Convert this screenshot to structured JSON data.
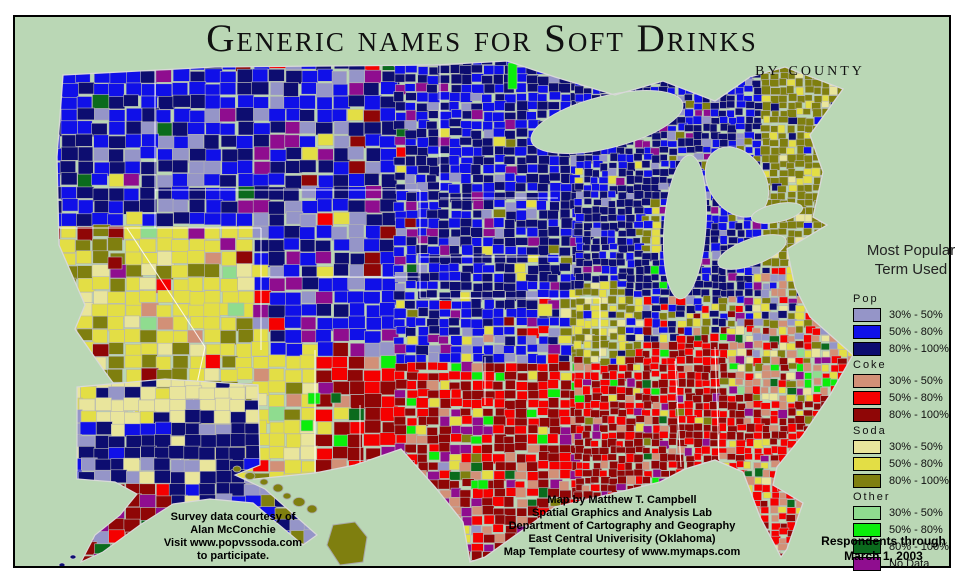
{
  "title": {
    "main": "Generic names for Soft Drinks",
    "subtitle": "by county"
  },
  "legend": {
    "heading_line1": "Most Popular",
    "heading_line2": "Term Used",
    "sections": [
      {
        "name": "Pop",
        "rows": [
          {
            "label": "30% - 50%",
            "color_key": "pop30"
          },
          {
            "label": "50% - 80%",
            "color_key": "pop50"
          },
          {
            "label": "80% - 100%",
            "color_key": "pop80"
          }
        ]
      },
      {
        "name": "Coke",
        "rows": [
          {
            "label": "30% - 50%",
            "color_key": "coke30"
          },
          {
            "label": "50% - 80%",
            "color_key": "coke50"
          },
          {
            "label": "80% - 100%",
            "color_key": "coke80"
          }
        ]
      },
      {
        "name": "Soda",
        "rows": [
          {
            "label": "30% - 50%",
            "color_key": "soda30"
          },
          {
            "label": "50% - 80%",
            "color_key": "soda50"
          },
          {
            "label": "80% - 100%",
            "color_key": "soda80"
          }
        ]
      },
      {
        "name": "Other",
        "rows": [
          {
            "label": "30% - 50%",
            "color_key": "other30"
          },
          {
            "label": "50% - 80%",
            "color_key": "other50"
          },
          {
            "label": "80% - 100%",
            "color_key": "other80"
          },
          {
            "label": "No Data",
            "color_key": "nodata"
          }
        ]
      }
    ]
  },
  "palette": {
    "pop30": "#9595c8",
    "pop50": "#1010e8",
    "pop80": "#0d0d70",
    "coke30": "#d29077",
    "coke50": "#f50000",
    "coke80": "#8f0606",
    "soda30": "#e9e59c",
    "soda50": "#e3de45",
    "soda80": "#7f7f0f",
    "other30": "#8fdc8f",
    "other50": "#0bee0b",
    "other80": "#0b6b1d",
    "nodata": "#8f0d8f"
  },
  "map": {
    "background": "#bad7b5",
    "county_line": "#b4b4b4",
    "state_line": "#ffffff",
    "coast_line": "#d9d9d9"
  },
  "credits": {
    "survey": [
      "Survey data courtesy of",
      "Alan McConchie",
      "Visit www.popvssoda.com",
      "to participate."
    ],
    "map": [
      "Map by Matthew T. Campbell",
      "Spatial Graphics and Analysis Lab",
      "Department of Cartography and Geography",
      "East Central Univerisity (Oklahoma)",
      "Map Template courtesy of www.mymaps.com"
    ],
    "respondents": [
      "Respondents through",
      "March 1, 2003"
    ]
  }
}
